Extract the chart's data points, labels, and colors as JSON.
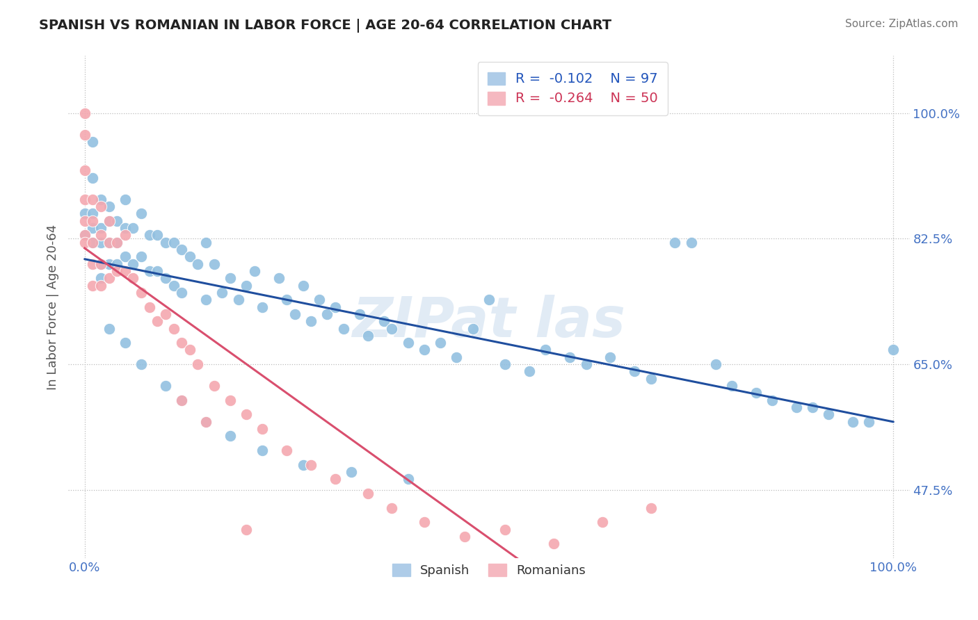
{
  "title": "SPANISH VS ROMANIAN IN LABOR FORCE | AGE 20-64 CORRELATION CHART",
  "source": "Source: ZipAtlas.com",
  "ylabel": "In Labor Force | Age 20-64",
  "xlim": [
    -0.02,
    1.02
  ],
  "ylim": [
    0.38,
    1.08
  ],
  "yticks": [
    0.475,
    0.65,
    0.825,
    1.0
  ],
  "ytick_labels": [
    "47.5%",
    "65.0%",
    "82.5%",
    "100.0%"
  ],
  "xticks": [
    0.0,
    1.0
  ],
  "xtick_labels": [
    "0.0%",
    "100.0%"
  ],
  "spanish_color": "#92c0e0",
  "romanian_color": "#f4a8b0",
  "line_spanish_color": "#1f4e9e",
  "line_romanian_color": "#d94f6e",
  "background_color": "#ffffff",
  "grid_color": "#bbbbbb",
  "spanish_scatter_x": [
    0.0,
    0.0,
    0.01,
    0.01,
    0.01,
    0.01,
    0.01,
    0.02,
    0.02,
    0.02,
    0.02,
    0.02,
    0.03,
    0.03,
    0.03,
    0.03,
    0.04,
    0.04,
    0.04,
    0.05,
    0.05,
    0.05,
    0.06,
    0.06,
    0.07,
    0.07,
    0.08,
    0.08,
    0.09,
    0.09,
    0.1,
    0.1,
    0.11,
    0.11,
    0.12,
    0.12,
    0.13,
    0.14,
    0.15,
    0.15,
    0.16,
    0.17,
    0.18,
    0.19,
    0.2,
    0.21,
    0.22,
    0.24,
    0.25,
    0.26,
    0.27,
    0.28,
    0.29,
    0.3,
    0.31,
    0.32,
    0.34,
    0.35,
    0.37,
    0.38,
    0.4,
    0.42,
    0.44,
    0.46,
    0.48,
    0.5,
    0.52,
    0.55,
    0.57,
    0.6,
    0.62,
    0.65,
    0.68,
    0.7,
    0.73,
    0.75,
    0.78,
    0.8,
    0.83,
    0.85,
    0.88,
    0.9,
    0.92,
    0.95,
    0.97,
    1.0,
    0.03,
    0.05,
    0.07,
    0.1,
    0.12,
    0.15,
    0.18,
    0.22,
    0.27,
    0.33,
    0.4
  ],
  "spanish_scatter_y": [
    0.86,
    0.83,
    0.96,
    0.91,
    0.86,
    0.84,
    0.82,
    0.88,
    0.84,
    0.82,
    0.79,
    0.77,
    0.87,
    0.85,
    0.82,
    0.79,
    0.85,
    0.82,
    0.79,
    0.88,
    0.84,
    0.8,
    0.84,
    0.79,
    0.86,
    0.8,
    0.83,
    0.78,
    0.83,
    0.78,
    0.82,
    0.77,
    0.82,
    0.76,
    0.81,
    0.75,
    0.8,
    0.79,
    0.82,
    0.74,
    0.79,
    0.75,
    0.77,
    0.74,
    0.76,
    0.78,
    0.73,
    0.77,
    0.74,
    0.72,
    0.76,
    0.71,
    0.74,
    0.72,
    0.73,
    0.7,
    0.72,
    0.69,
    0.71,
    0.7,
    0.68,
    0.67,
    0.68,
    0.66,
    0.7,
    0.74,
    0.65,
    0.64,
    0.67,
    0.66,
    0.65,
    0.66,
    0.64,
    0.63,
    0.82,
    0.82,
    0.65,
    0.62,
    0.61,
    0.6,
    0.59,
    0.59,
    0.58,
    0.57,
    0.57,
    0.67,
    0.7,
    0.68,
    0.65,
    0.62,
    0.6,
    0.57,
    0.55,
    0.53,
    0.51,
    0.5,
    0.49
  ],
  "romanian_scatter_x": [
    0.0,
    0.0,
    0.0,
    0.0,
    0.0,
    0.0,
    0.0,
    0.01,
    0.01,
    0.01,
    0.01,
    0.01,
    0.02,
    0.02,
    0.02,
    0.02,
    0.03,
    0.03,
    0.03,
    0.04,
    0.04,
    0.05,
    0.05,
    0.06,
    0.07,
    0.08,
    0.09,
    0.1,
    0.11,
    0.12,
    0.13,
    0.14,
    0.16,
    0.18,
    0.2,
    0.22,
    0.25,
    0.28,
    0.31,
    0.35,
    0.38,
    0.42,
    0.47,
    0.52,
    0.58,
    0.64,
    0.7,
    0.12,
    0.15,
    0.2
  ],
  "romanian_scatter_y": [
    1.0,
    0.97,
    0.92,
    0.88,
    0.85,
    0.83,
    0.82,
    0.88,
    0.85,
    0.82,
    0.79,
    0.76,
    0.87,
    0.83,
    0.79,
    0.76,
    0.85,
    0.82,
    0.77,
    0.82,
    0.78,
    0.83,
    0.78,
    0.77,
    0.75,
    0.73,
    0.71,
    0.72,
    0.7,
    0.68,
    0.67,
    0.65,
    0.62,
    0.6,
    0.58,
    0.56,
    0.53,
    0.51,
    0.49,
    0.47,
    0.45,
    0.43,
    0.41,
    0.42,
    0.4,
    0.43,
    0.45,
    0.6,
    0.57,
    0.42
  ]
}
